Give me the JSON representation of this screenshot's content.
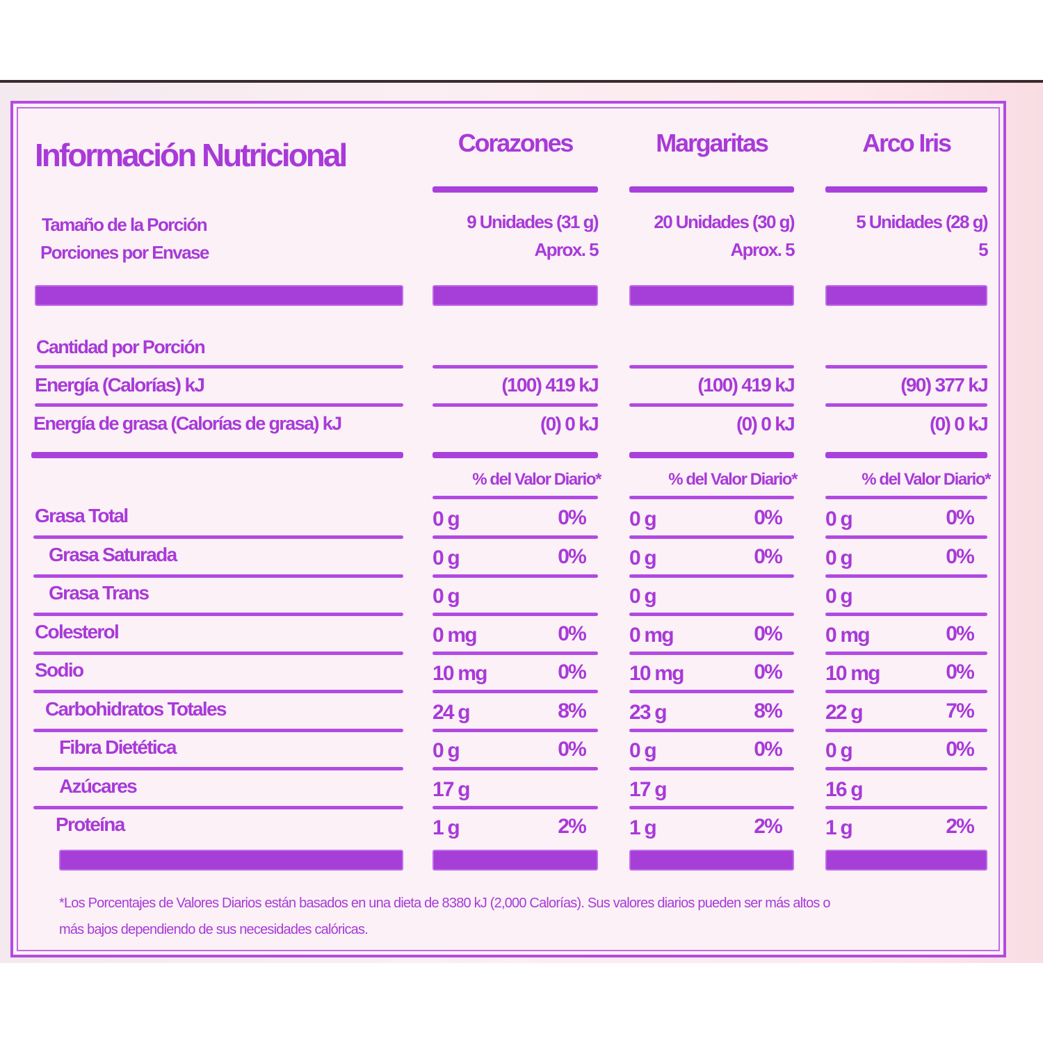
{
  "title": "Información Nutricional",
  "accent_color": "#a83ad8",
  "columns": [
    "Corazones",
    "Margaritas",
    "Arco Iris"
  ],
  "serving_label": "Tamaño de la Porción",
  "servings_label": "Porciones por Envase",
  "serving_sizes": [
    "9 Unidades (31 g)",
    "20 Unidades (30 g)",
    "5 Unidades (28 g)"
  ],
  "servings_per": [
    "Aprox. 5",
    "Aprox. 5",
    "5"
  ],
  "amount_label": "Cantidad por Porción",
  "energy_label": "Energía (Calorías) kJ",
  "energy": [
    "(100) 419 kJ",
    "(100) 419 kJ",
    "(90) 377 kJ"
  ],
  "fat_energy_label": "Energía de grasa (Calorías de grasa) kJ",
  "fat_energy": [
    "(0) 0 kJ",
    "(0) 0 kJ",
    "(0) 0 kJ"
  ],
  "dv_header": "% del Valor Diario*",
  "nutrients": [
    {
      "name": "Grasa Total",
      "indent": 0,
      "values": [
        [
          "0 g",
          "0%"
        ],
        [
          "0 g",
          "0%"
        ],
        [
          "0 g",
          "0%"
        ]
      ]
    },
    {
      "name": "Grasa Saturada",
      "indent": 1,
      "values": [
        [
          "0 g",
          "0%"
        ],
        [
          "0 g",
          "0%"
        ],
        [
          "0 g",
          "0%"
        ]
      ]
    },
    {
      "name": "Grasa Trans",
      "indent": 1,
      "values": [
        [
          "0 g",
          ""
        ],
        [
          "0 g",
          ""
        ],
        [
          "0 g",
          ""
        ]
      ]
    },
    {
      "name": "Colesterol",
      "indent": 0,
      "values": [
        [
          "0 mg",
          "0%"
        ],
        [
          "0 mg",
          "0%"
        ],
        [
          "0 mg",
          "0%"
        ]
      ]
    },
    {
      "name": "Sodio",
      "indent": 0,
      "values": [
        [
          "10 mg",
          "0%"
        ],
        [
          "10 mg",
          "0%"
        ],
        [
          "10 mg",
          "0%"
        ]
      ]
    },
    {
      "name": "Carbohidratos Totales",
      "indent": 0,
      "values": [
        [
          "24 g",
          "8%"
        ],
        [
          "23 g",
          "8%"
        ],
        [
          "22 g",
          "7%"
        ]
      ]
    },
    {
      "name": "Fibra Dietética",
      "indent": 1,
      "values": [
        [
          "0 g",
          "0%"
        ],
        [
          "0 g",
          "0%"
        ],
        [
          "0 g",
          "0%"
        ]
      ]
    },
    {
      "name": "Azúcares",
      "indent": 1,
      "values": [
        [
          "17 g",
          ""
        ],
        [
          "17 g",
          ""
        ],
        [
          "16 g",
          ""
        ]
      ]
    },
    {
      "name": "Proteína",
      "indent": 0,
      "values": [
        [
          "1 g",
          "2%"
        ],
        [
          "1 g",
          "2%"
        ],
        [
          "1 g",
          "2%"
        ]
      ]
    }
  ],
  "footnote_line1": "*Los Porcentajes de Valores Diarios están basados en una dieta de 8380 kJ (2,000 Calorías). Sus valores diarios pueden ser más altos o",
  "footnote_line2": "más bajos dependiendo de sus necesidades calóricas."
}
